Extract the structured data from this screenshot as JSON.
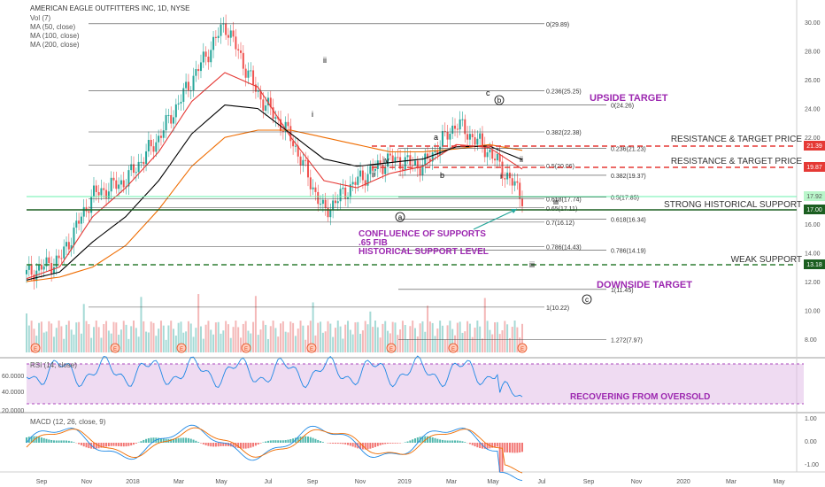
{
  "legend": {
    "title": "AMERICAN EAGLE OUTFITTERS INC, 1D, NYSE",
    "lines": [
      "Vol (7)",
      "MA (50, close)",
      "MA (100, close)",
      "MA (200, close)"
    ]
  },
  "time_axis": [
    "Sep",
    "Nov",
    "2018",
    "Mar",
    "May",
    "Jul",
    "Sep",
    "Nov",
    "2019",
    "Mar",
    "May",
    "Jul",
    "Sep",
    "Nov",
    "2020",
    "Mar",
    "May"
  ],
  "price_axis": [
    "30.00",
    "28.00",
    "26.00",
    "24.00",
    "22.00",
    "20.00",
    "18.00",
    "16.00",
    "14.00",
    "12.00",
    "10.00",
    "8.00"
  ],
  "fib_left": [
    "0(29.89)",
    "0.236(25.25)",
    "0.382(22.38)",
    "0.5(20.06)",
    "0.618(17.74)",
    "0.65(17.11)",
    "0.7(16.12)",
    "0.786(14.43)",
    "1(10.22)"
  ],
  "fib_right": [
    "0(24.26)",
    "0.236(21.23)",
    "0.382(19.37)",
    "0.5(17.85)",
    "0.618(16.34)",
    "0.786(14.19)",
    "1(11.45)",
    "1.272(7.97)"
  ],
  "levels": {
    "res1": {
      "label": "RESISTANCE  & TARGET PRICE",
      "badge": "21.39",
      "color": "#e53935"
    },
    "res2": {
      "label": "RESISTANCE  & TARGET PRICE",
      "badge": "19.87",
      "color": "#e53935"
    },
    "strong": {
      "label": "STRONG HISTORICAL SUPPORT",
      "badge": "17.00",
      "color": "#1b5e20"
    },
    "weak": {
      "label": "WEAK SUPPORT",
      "badge": "13.18",
      "color": "#2e7d32"
    },
    "current": {
      "badge": "17.92",
      "color": "#b9f6ca"
    }
  },
  "annotations": {
    "upside": "UPSIDE TARGET",
    "downside": "DOWNSIDE TARGET",
    "confluence": [
      "CONFLUENCE OF SUPPORTS",
      ".65 FIB",
      "HISTORICAL SUPPORT LEVEL"
    ],
    "rsi_note": "RECOVERING FROM OVERSOLD",
    "accent": "#9c27b0"
  },
  "waves": {
    "i1": "i",
    "ii1": "ii",
    "ii2": "ii",
    "iii": "iii",
    "iv": "iv",
    "a_circ": "a",
    "b_circ": "b",
    "c_circ": "c",
    "a": "a",
    "b": "b",
    "c": "c",
    "i2": "i",
    "ii3": "ii",
    "iii2": "iii"
  },
  "earnings_marker": "E",
  "rsi": {
    "title": "RSI (14, close)",
    "ticks": [
      "60.0000",
      "40.0000",
      "20.0000"
    ]
  },
  "macd": {
    "title": "MACD (12, 26, close, 9)",
    "ticks": [
      "1.00",
      "0.00",
      "-1.00"
    ]
  },
  "chart_data": {
    "type": "line",
    "title": "AMERICAN EAGLE OUTFITTERS INC, 1D, NYSE",
    "xlabel": "",
    "ylabel": "",
    "ylim": [
      7,
      31
    ],
    "series": [
      {
        "name": "close",
        "x": [
          "2017-09",
          "2017-11",
          "2018-01",
          "2018-03",
          "2018-05",
          "2018-07",
          "2018-08",
          "2018-09",
          "2018-11",
          "2018-12",
          "2019-01",
          "2019-02",
          "2019-03",
          "2019-04",
          "2019-05",
          "2019-05-20"
        ],
        "values": [
          12.5,
          13.5,
          18,
          19,
          22,
          26,
          29.9,
          25,
          22,
          16.8,
          19,
          20.5,
          20,
          23,
          21,
          17.9
        ]
      },
      {
        "name": "MA (50, close)",
        "values": [
          12.2,
          13,
          16.5,
          18.5,
          21,
          24.5,
          26.5,
          25.5,
          22,
          19,
          18.5,
          19.5,
          20,
          21.5,
          21.3,
          19.8
        ]
      },
      {
        "name": "MA (200, close)",
        "values": [
          12,
          12.3,
          13,
          14.5,
          17,
          20,
          22,
          22.5,
          22.5,
          22,
          21.5,
          21,
          21,
          21.2,
          21.5,
          21.1
        ]
      }
    ],
    "fib_retracement_1": [
      [
        "0",
        29.89
      ],
      [
        "0.236",
        25.25
      ],
      [
        "0.382",
        22.38
      ],
      [
        "0.5",
        20.06
      ],
      [
        "0.618",
        17.74
      ],
      [
        "0.65",
        17.11
      ],
      [
        "0.7",
        16.12
      ],
      [
        "0.786",
        14.43
      ],
      [
        "1",
        10.22
      ]
    ],
    "fib_extension_2": [
      [
        "0",
        24.26
      ],
      [
        "0.236",
        21.23
      ],
      [
        "0.382",
        19.37
      ],
      [
        "0.5",
        17.85
      ],
      [
        "0.618",
        16.34
      ],
      [
        "0.786",
        14.19
      ],
      [
        "1",
        11.45
      ],
      [
        "1.272",
        7.97
      ]
    ],
    "resistance": [
      21.39,
      19.87
    ],
    "support": [
      17.0,
      13.18
    ],
    "last_price": 17.92,
    "earnings_events": 9
  }
}
